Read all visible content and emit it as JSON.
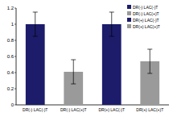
{
  "chart_data": {
    "type": "bar",
    "categories": [
      "DR(-) LAC(-)T",
      "DR(-) LAC(+)T",
      "DR(+) LAC(-)T",
      "DR(+) LAC(+)T"
    ],
    "values": [
      1.0,
      0.41,
      1.0,
      0.54
    ],
    "errors": [
      0.15,
      0.15,
      0.15,
      0.15
    ],
    "colors": [
      "#1c1c6b",
      "#9a9a9a",
      "#1c1c6b",
      "#9a9a9a"
    ],
    "ylim": [
      0,
      1.2
    ],
    "yticks": [
      0,
      0.2,
      0.4,
      0.6,
      0.8,
      1,
      1.2
    ],
    "legend": "top-right",
    "grid": false
  }
}
